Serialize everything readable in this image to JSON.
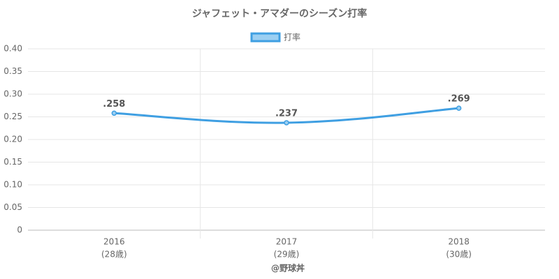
{
  "chart_data": {
    "type": "line",
    "title": "ジャフェット・アマダーのシーズン打率",
    "categories": [
      "2016",
      "2017",
      "2018"
    ],
    "category_sublabels": [
      "(28歳)",
      "(29歳)",
      "(30歳)"
    ],
    "series": [
      {
        "name": "打率",
        "color": "#3f9fe2",
        "values": [
          0.258,
          0.237,
          0.269
        ],
        "value_labels": [
          ".258",
          ".237",
          ".269"
        ]
      }
    ],
    "ylim": [
      0,
      0.4
    ],
    "yticks": [
      0,
      {
        "value": 0.05,
        "label": "0.05"
      },
      {
        "value": 0.1,
        "label": "0.10"
      },
      {
        "value": 0.15,
        "label": "0.15"
      },
      {
        "value": 0.2,
        "label": "0.20"
      },
      {
        "value": 0.25,
        "label": "0.25"
      },
      {
        "value": 0.3,
        "label": "0.30"
      },
      {
        "value": 0.35,
        "label": "0.35"
      },
      {
        "value": 0.4,
        "label": "0.40"
      }
    ],
    "grid": true,
    "legend": "top",
    "source": "@野球丼"
  }
}
